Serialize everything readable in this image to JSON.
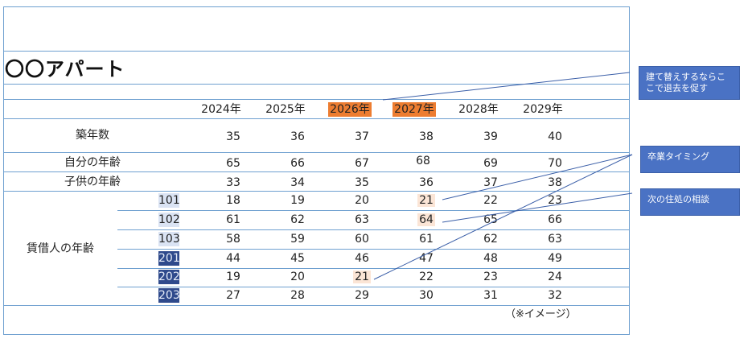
{
  "title": "〇〇アパート",
  "years": [
    {
      "label": "2024年",
      "highlight": false
    },
    {
      "label": "2025年",
      "highlight": false
    },
    {
      "label": "2026年",
      "highlight": true
    },
    {
      "label": "2027年",
      "highlight": true
    },
    {
      "label": "2028年",
      "highlight": false
    },
    {
      "label": "2029年",
      "highlight": false
    }
  ],
  "rows": {
    "building_age": {
      "label": "築年数",
      "values": [
        "35",
        "36",
        "37",
        "38",
        "39",
        "40"
      ]
    },
    "own_age": {
      "label": "自分の年齢",
      "values": [
        "65",
        "66",
        "67",
        "68",
        "69",
        "70"
      ]
    },
    "child_age": {
      "label": "子供の年齢",
      "values": [
        "33",
        "34",
        "35",
        "36",
        "37",
        "38"
      ]
    }
  },
  "tenant_label": "賃借人の年齢",
  "tenants": [
    {
      "room": "101",
      "values": [
        "18",
        "19",
        "20",
        "21",
        "22",
        "23"
      ]
    },
    {
      "room": "102",
      "values": [
        "61",
        "62",
        "63",
        "64",
        "65",
        "66"
      ]
    },
    {
      "room": "103",
      "values": [
        "58",
        "59",
        "60",
        "61",
        "62",
        "63"
      ]
    },
    {
      "room": "201",
      "values": [
        "44",
        "45",
        "46",
        "47",
        "48",
        "49"
      ]
    },
    {
      "room": "202",
      "values": [
        "19",
        "20",
        "21",
        "22",
        "23",
        "24"
      ]
    },
    {
      "room": "203",
      "values": [
        "27",
        "28",
        "29",
        "30",
        "31",
        "32"
      ]
    }
  ],
  "callouts": {
    "rebuild": "建て替えするならここで退去を促す",
    "graduation": "卒業タイミング",
    "consult": "次の住処の相談"
  },
  "note": "（※イメージ）",
  "colors": {
    "accent_orange": "#ed7d31",
    "light_peach": "#fbe5d6",
    "light_room": "#dae3f3",
    "dark_room": "#2f4a8c",
    "grid_line": "#6fa0d0",
    "callout_fill": "#4a72c4"
  }
}
